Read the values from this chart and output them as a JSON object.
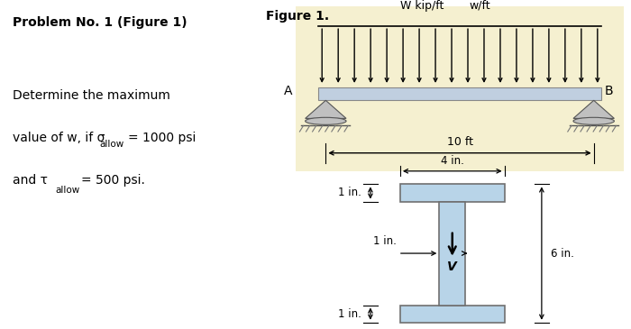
{
  "bg_color": "#ffffff",
  "right_panel_bg": "#f5f0d0",
  "title": "Problem No. 1 (Figure 1)",
  "figure_label": "Figure 1.",
  "beam_label_w": "W kip/ft",
  "beam_label_w2": "w/ft",
  "beam_length_label": "10 ft",
  "label_A": "A",
  "label_B": "B",
  "dim_4in": "4 in.",
  "dim_1in_top": "1 in.",
  "dim_1in_mid": "1 in.",
  "dim_6in": "6 in.",
  "dim_1in_bot": "1 in.",
  "label_V": "V",
  "i_beam_fill": "#b8d4e8",
  "i_beam_edge": "#707070",
  "beam_fill": "#c0cfe0",
  "beam_edge": "#888888"
}
